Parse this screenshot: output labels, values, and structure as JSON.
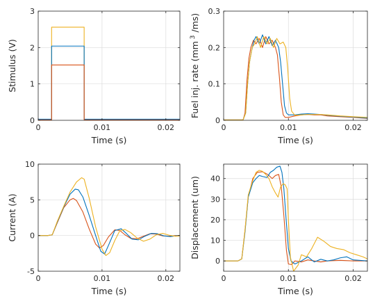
{
  "colors": {
    "blue": "#0072BD",
    "red": "#D95319",
    "yellow": "#EDB120"
  },
  "chart_data": [
    {
      "id": "stimulus",
      "type": "line",
      "xlabel": "Time (s)",
      "ylabel": "Stimulus (V)",
      "xlim": [
        0,
        0.0222
      ],
      "ylim": [
        0,
        3
      ],
      "xticks": [
        0,
        0.01,
        0.02
      ],
      "xtick_labels": [
        "0",
        "0.01",
        "0.02"
      ],
      "yticks": [
        0,
        1,
        2,
        3
      ],
      "ytick_labels": [
        "0",
        "1",
        "2",
        "3"
      ],
      "grid": true,
      "series": [
        {
          "color": "yellow",
          "x": [
            0,
            0.0021,
            0.0021,
            0.0072,
            0.0072,
            0.0222
          ],
          "y": [
            0.02,
            0.02,
            2.56,
            2.56,
            0.02,
            0.02
          ]
        },
        {
          "color": "blue",
          "x": [
            0,
            0.0021,
            0.0021,
            0.0072,
            0.0072,
            0.0222
          ],
          "y": [
            0.03,
            0.03,
            2.04,
            2.04,
            0.03,
            0.03
          ]
        },
        {
          "color": "red",
          "x": [
            0,
            0.0021,
            0.0021,
            0.0072,
            0.0072,
            0.0222
          ],
          "y": [
            0.01,
            0.01,
            1.52,
            1.52,
            0.01,
            0.01
          ]
        }
      ]
    },
    {
      "id": "fuel",
      "type": "line",
      "xlabel": "Time (s)",
      "ylabel": "Fuel inj. rate (mm",
      "ylabel_super": "3",
      "ylabel_tail": "/ms)",
      "xlim": [
        0,
        0.0222
      ],
      "ylim": [
        0,
        0.3
      ],
      "xticks": [
        0,
        0.01,
        0.02
      ],
      "xtick_labels": [
        "0",
        "0.01",
        "0.02"
      ],
      "yticks": [
        0,
        0.1,
        0.2,
        0.3
      ],
      "ytick_labels": [
        "0",
        "0.1",
        "0.2",
        "0.3"
      ],
      "grid": true,
      "series": [
        {
          "color": "red",
          "x": [
            0,
            0.003,
            0.0033,
            0.0036,
            0.0039,
            0.0042,
            0.0046,
            0.005,
            0.0055,
            0.006,
            0.0065,
            0.007,
            0.0075,
            0.008,
            0.0083,
            0.0086,
            0.0089,
            0.0092,
            0.0095,
            0.01,
            0.011,
            0.012,
            0.013,
            0.014,
            0.015,
            0.016,
            0.018,
            0.02,
            0.0222
          ],
          "y": [
            0.001,
            0.001,
            0.02,
            0.11,
            0.17,
            0.2,
            0.22,
            0.21,
            0.225,
            0.2,
            0.23,
            0.21,
            0.22,
            0.2,
            0.18,
            0.12,
            0.05,
            0.015,
            0.008,
            0.008,
            0.012,
            0.015,
            0.016,
            0.015,
            0.015,
            0.012,
            0.01,
            0.008,
            0.005
          ]
        },
        {
          "color": "blue",
          "x": [
            0,
            0.003,
            0.0034,
            0.0037,
            0.004,
            0.0043,
            0.0047,
            0.005,
            0.0055,
            0.006,
            0.0065,
            0.007,
            0.0075,
            0.008,
            0.0085,
            0.0088,
            0.0091,
            0.0094,
            0.0097,
            0.01,
            0.011,
            0.012,
            0.013,
            0.014,
            0.015,
            0.016,
            0.018,
            0.02,
            0.0222
          ],
          "y": [
            0.001,
            0.001,
            0.02,
            0.1,
            0.16,
            0.19,
            0.22,
            0.23,
            0.21,
            0.235,
            0.21,
            0.23,
            0.205,
            0.22,
            0.2,
            0.16,
            0.1,
            0.04,
            0.02,
            0.015,
            0.015,
            0.017,
            0.018,
            0.017,
            0.016,
            0.014,
            0.011,
            0.009,
            0.006
          ]
        },
        {
          "color": "yellow",
          "x": [
            0,
            0.003,
            0.0034,
            0.0037,
            0.004,
            0.0044,
            0.0048,
            0.0052,
            0.0057,
            0.0062,
            0.0067,
            0.0072,
            0.0077,
            0.0082,
            0.0087,
            0.0092,
            0.0096,
            0.0099,
            0.0102,
            0.0105,
            0.011,
            0.012,
            0.013,
            0.014,
            0.015,
            0.016,
            0.018,
            0.02,
            0.0222
          ],
          "y": [
            0.001,
            0.001,
            0.02,
            0.1,
            0.16,
            0.2,
            0.21,
            0.23,
            0.2,
            0.23,
            0.21,
            0.225,
            0.2,
            0.225,
            0.21,
            0.215,
            0.2,
            0.14,
            0.06,
            0.025,
            0.014,
            0.015,
            0.016,
            0.016,
            0.016,
            0.015,
            0.012,
            0.01,
            0.008
          ]
        }
      ]
    },
    {
      "id": "current",
      "type": "line",
      "xlabel": "Time (s)",
      "ylabel": "Current (A)",
      "xlim": [
        0,
        0.0222
      ],
      "ylim": [
        -5,
        10
      ],
      "xticks": [
        0,
        0.01,
        0.02
      ],
      "xtick_labels": [
        "0",
        "0.01",
        "0.02"
      ],
      "yticks": [
        -5,
        0,
        5,
        10
      ],
      "ytick_labels": [
        "-5",
        "0",
        "5",
        "10"
      ],
      "grid": true,
      "series": [
        {
          "color": "red",
          "x": [
            0,
            0.0015,
            0.0022,
            0.003,
            0.004,
            0.005,
            0.0055,
            0.006,
            0.007,
            0.008,
            0.009,
            0.0096,
            0.0102,
            0.011,
            0.012,
            0.0128,
            0.0136,
            0.0145,
            0.0155,
            0.0165,
            0.0175,
            0.0185,
            0.0195,
            0.0205,
            0.0215,
            0.0222
          ],
          "y": [
            0,
            0,
            0.1,
            1.8,
            3.9,
            5.0,
            5.2,
            4.9,
            3.3,
            0.9,
            -1.2,
            -1.75,
            -1.4,
            -0.2,
            0.8,
            0.7,
            0.1,
            -0.4,
            -0.45,
            -0.1,
            0.25,
            0.2,
            -0.05,
            -0.1,
            0,
            0
          ]
        },
        {
          "color": "blue",
          "x": [
            0,
            0.0015,
            0.0022,
            0.003,
            0.004,
            0.005,
            0.0058,
            0.0063,
            0.007,
            0.008,
            0.009,
            0.0098,
            0.0104,
            0.011,
            0.012,
            0.013,
            0.0138,
            0.0147,
            0.0157,
            0.0167,
            0.0177,
            0.0187,
            0.0197,
            0.0207,
            0.0215,
            0.0222
          ],
          "y": [
            0,
            0,
            0.1,
            1.9,
            4.0,
            5.8,
            6.5,
            6.4,
            5.4,
            2.8,
            0.0,
            -2.2,
            -2.6,
            -1.4,
            0.7,
            0.95,
            0.3,
            -0.5,
            -0.6,
            -0.1,
            0.3,
            0.25,
            -0.05,
            -0.15,
            -0.05,
            0
          ]
        },
        {
          "color": "yellow",
          "x": [
            0,
            0.0015,
            0.0022,
            0.003,
            0.004,
            0.005,
            0.006,
            0.0068,
            0.0072,
            0.008,
            0.009,
            0.01,
            0.0106,
            0.0112,
            0.012,
            0.0128,
            0.0136,
            0.0145,
            0.0155,
            0.0165,
            0.0175,
            0.0185,
            0.0195,
            0.0205,
            0.0215,
            0.0222
          ],
          "y": [
            0,
            0,
            0.1,
            2.0,
            4.1,
            6.1,
            7.5,
            8.1,
            7.9,
            5.2,
            1.2,
            -1.9,
            -2.8,
            -2.4,
            -0.7,
            0.7,
            0.85,
            0.4,
            -0.35,
            -0.8,
            -0.5,
            0.1,
            0.3,
            0.05,
            -0.1,
            -0.05
          ]
        }
      ]
    },
    {
      "id": "displacement",
      "type": "line",
      "xlabel": "Time (s)",
      "ylabel": "Displacement (um)",
      "xlim": [
        0,
        0.0222
      ],
      "ylim": [
        -5,
        47
      ],
      "xticks": [
        0,
        0.01,
        0.02
      ],
      "xtick_labels": [
        "0",
        "0.01",
        "0.02"
      ],
      "yticks": [
        0,
        10,
        20,
        30,
        40
      ],
      "ytick_labels": [
        "0",
        "10",
        "20",
        "30",
        "40"
      ],
      "grid": true,
      "series": [
        {
          "color": "red",
          "x": [
            0,
            0.0022,
            0.0028,
            0.0033,
            0.0038,
            0.0045,
            0.0052,
            0.006,
            0.0068,
            0.0075,
            0.008,
            0.0085,
            0.0089,
            0.0093,
            0.0097,
            0.01,
            0.0105,
            0.011,
            0.012,
            0.013,
            0.014,
            0.015,
            0.016,
            0.018,
            0.02,
            0.0222
          ],
          "y": [
            0,
            0,
            1,
            15,
            31,
            40,
            43,
            43.3,
            42,
            40,
            41.5,
            42,
            36,
            22,
            5,
            -1.5,
            -1.8,
            0,
            -0.5,
            0.5,
            0,
            -0.5,
            0,
            0.3,
            0,
            0
          ]
        },
        {
          "color": "blue",
          "x": [
            0,
            0.0022,
            0.0028,
            0.0033,
            0.0038,
            0.0045,
            0.005,
            0.0055,
            0.006,
            0.0067,
            0.0072,
            0.0077,
            0.0082,
            0.0087,
            0.009,
            0.0093,
            0.0097,
            0.01,
            0.0104,
            0.011,
            0.012,
            0.013,
            0.014,
            0.015,
            0.016,
            0.017,
            0.018,
            0.019,
            0.02,
            0.0222
          ],
          "y": [
            0,
            0,
            1,
            14,
            31,
            38,
            40,
            41.5,
            41,
            40.5,
            43,
            44,
            45.5,
            46,
            43,
            35,
            18,
            6,
            0,
            -1.5,
            0,
            2,
            -0.5,
            0.8,
            0,
            0.5,
            1.5,
            2,
            0.5,
            0
          ]
        },
        {
          "color": "yellow",
          "x": [
            0,
            0.0022,
            0.0028,
            0.0033,
            0.0038,
            0.0045,
            0.005,
            0.0055,
            0.006,
            0.0065,
            0.007,
            0.0075,
            0.008,
            0.0084,
            0.0088,
            0.0092,
            0.0095,
            0.0098,
            0.01,
            0.0103,
            0.0108,
            0.0115,
            0.012,
            0.0128,
            0.0136,
            0.0145,
            0.0155,
            0.0165,
            0.0175,
            0.0185,
            0.0195,
            0.0205,
            0.0215,
            0.0222
          ],
          "y": [
            0,
            0,
            1,
            15,
            32,
            39,
            43,
            44,
            43.5,
            42,
            40,
            36,
            33,
            31,
            36,
            37.5,
            37,
            35,
            20,
            2,
            -5,
            -2,
            3,
            2,
            6,
            11.5,
            9.5,
            7,
            6,
            5.5,
            4,
            3,
            2,
            1
          ]
        }
      ]
    }
  ]
}
